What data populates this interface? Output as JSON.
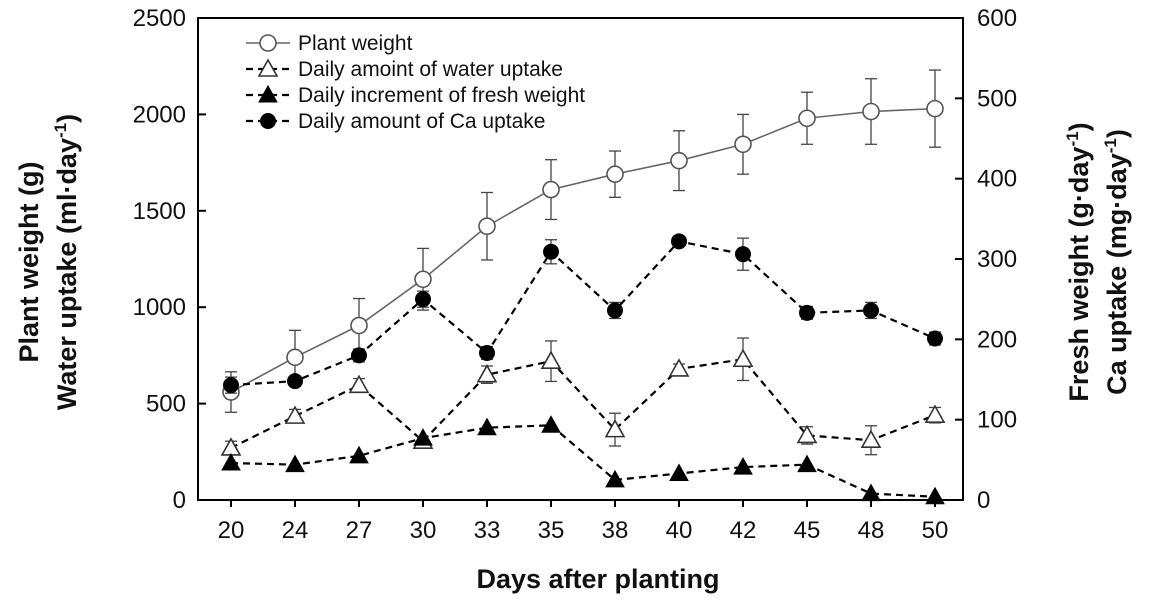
{
  "chart_data": {
    "type": "line",
    "x_categories": [
      "20",
      "24",
      "27",
      "30",
      "33",
      "35",
      "38",
      "40",
      "42",
      "45",
      "48",
      "50"
    ],
    "xlabel": "Days after planting",
    "left_axis": {
      "label_line1": "Plant weight (g)",
      "label_line2_main": "Water uptake (ml·day",
      "label_line2_sup": "-1",
      "label_line2_end": ")",
      "ylim": [
        0,
        2500
      ],
      "ticks": [
        "0",
        "500",
        "1000",
        "1500",
        "2000",
        "2500"
      ]
    },
    "right_axis": {
      "label_line1_main": "Fresh weight (g·day",
      "label_line1_sup": "-1",
      "label_line1_end": ")",
      "label_line2_main": "Ca uptake (mg·day",
      "label_line2_sup": "-1",
      "label_line2_end": ")",
      "ylim": [
        0,
        600
      ],
      "ticks": [
        "0",
        "100",
        "200",
        "300",
        "400",
        "500",
        "600"
      ]
    },
    "legend_position": "top-left",
    "series": [
      {
        "name": "Plant weight",
        "axis": "left",
        "marker": "circle-open",
        "line": "solid",
        "color": "#666666",
        "values": [
          560,
          740,
          905,
          1145,
          1420,
          1610,
          1690,
          1760,
          1845,
          1980,
          2015,
          2030
        ],
        "errors": [
          105,
          140,
          140,
          160,
          175,
          155,
          120,
          155,
          155,
          135,
          170,
          200
        ]
      },
      {
        "name": "Daily amoint of water uptake",
        "axis": "left",
        "marker": "triangle-open",
        "line": "dashed",
        "color": "#111111",
        "values": [
          270,
          435,
          595,
          305,
          650,
          720,
          365,
          680,
          730,
          335,
          310,
          440
        ],
        "errors": [
          35,
          35,
          35,
          25,
          45,
          105,
          85,
          25,
          110,
          45,
          75,
          40
        ]
      },
      {
        "name": "Daily increment of fresh weight",
        "axis": "right",
        "marker": "triangle-filled",
        "line": "dashed",
        "color": "#111111",
        "values": [
          46,
          44,
          55,
          77,
          90,
          93,
          25,
          33,
          41,
          44,
          8,
          4
        ],
        "errors": [
          0,
          0,
          0,
          0,
          0,
          0,
          0,
          0,
          0,
          0,
          0,
          0
        ]
      },
      {
        "name": "Daily amount of Ca uptake",
        "axis": "right",
        "marker": "circle-filled",
        "line": "dashed",
        "color": "#111111",
        "values": [
          143,
          148,
          180,
          250,
          183,
          309,
          236,
          322,
          306,
          233,
          236,
          201
        ],
        "errors": [
          10,
          5,
          8,
          10,
          8,
          15,
          10,
          6,
          20,
          8,
          10,
          8
        ]
      }
    ]
  }
}
